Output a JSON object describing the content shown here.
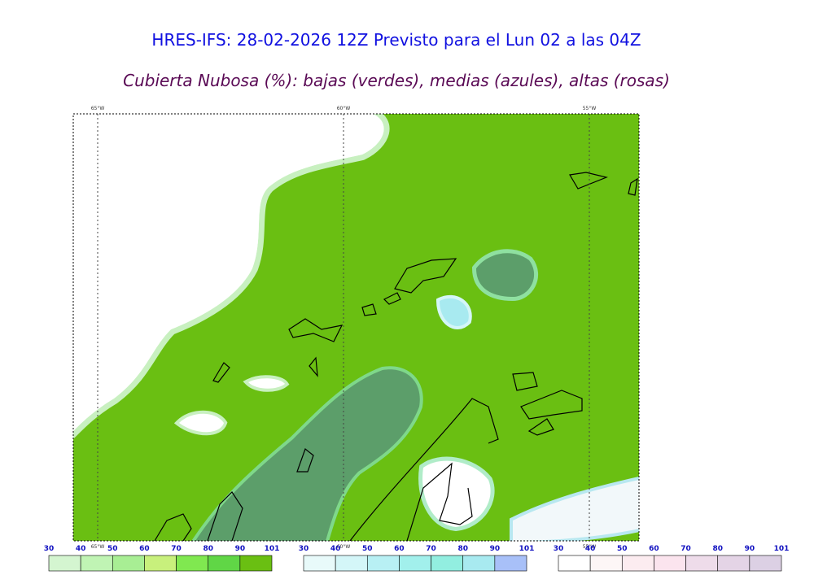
{
  "header": {
    "title": "HRES-IFS: 28-02-2026 12Z Previsto para el Lun 02 a las 04Z",
    "subtitle": "Cubierta Nubosa (%): bajas (verdes), medias (azules), altas (rosas)"
  },
  "map": {
    "meridian_labels": [
      "65°W",
      "60°W",
      "55°W"
    ]
  },
  "colorbars": [
    {
      "ticks": [
        30,
        40,
        50,
        60,
        70,
        80,
        90,
        101
      ],
      "colors": [
        "#d4f5d0",
        "#c0f4b4",
        "#a8ee94",
        "#c8f07c",
        "#80e850",
        "#60d646",
        "#6abf12"
      ]
    },
    {
      "ticks": [
        30,
        40,
        50,
        60,
        70,
        80,
        90,
        101
      ],
      "colors": [
        "#e8fafa",
        "#d4f6f8",
        "#b8f0f4",
        "#a2f0ec",
        "#92eee0",
        "#a8eaf0",
        "#a8c0f8"
      ]
    },
    {
      "ticks": [
        30,
        40,
        50,
        60,
        70,
        80,
        90,
        101
      ],
      "colors": [
        "#ffffff",
        "#fdf6f6",
        "#fcecf0",
        "#fbe4ee",
        "#eedcea",
        "#e4d4e6",
        "#dcd0e4"
      ]
    }
  ]
}
